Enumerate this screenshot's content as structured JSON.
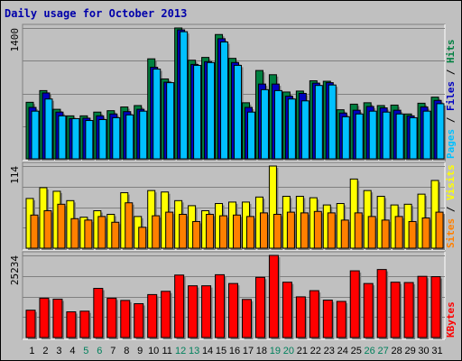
{
  "chart_data": {
    "type": "bar",
    "title": "Daily usage for October 2013",
    "days": [
      "1",
      "2",
      "3",
      "4",
      "5",
      "6",
      "7",
      "8",
      "9",
      "10",
      "11",
      "12",
      "13",
      "14",
      "15",
      "16",
      "17",
      "18",
      "19",
      "20",
      "21",
      "22",
      "23",
      "24",
      "25",
      "26",
      "27",
      "28",
      "29",
      "30",
      "31"
    ],
    "weekend_days": [
      "5",
      "6",
      "12",
      "13",
      "19",
      "20",
      "26",
      "27"
    ],
    "colors": {
      "hits": "#008040",
      "files": "#0000c0",
      "pages": "#00c0ff",
      "visits": "#ffff00",
      "sites": "#ff8000",
      "kbytes": "#ff0000",
      "weekday_label": "#000000",
      "weekend_label": "#00805c",
      "title": "#0000aa",
      "gridline": "#808080"
    },
    "panels": [
      {
        "name": "hits-files-pages",
        "ymax_label": "1400",
        "ymax": 1400,
        "legend": [
          {
            "text": "Pages",
            "color": "#00c0ff"
          },
          {
            "text": " / ",
            "color": "#000000"
          },
          {
            "text": "Files",
            "color": "#0000c0"
          },
          {
            "text": " / ",
            "color": "#000000"
          },
          {
            "text": "Hits",
            "color": "#008040"
          }
        ],
        "series": [
          {
            "name": "Hits",
            "color": "#008040",
            "values": [
              605,
              730,
              530,
              460,
              460,
              500,
              515,
              555,
              570,
              1070,
              855,
              1400,
              1055,
              1085,
              1330,
              1075,
              600,
              945,
              900,
              715,
              725,
              835,
              830,
              525,
              585,
              600,
              570,
              575,
              480,
              595,
              660
            ]
          },
          {
            "name": "Files",
            "color": "#0000c0",
            "values": [
              550,
              705,
              500,
              430,
              435,
              460,
              480,
              505,
              530,
              980,
              820,
              1380,
              1010,
              1040,
              1285,
              1030,
              550,
              800,
              800,
              670,
              700,
              810,
              815,
              490,
              520,
              560,
              545,
              520,
              460,
              555,
              625
            ]
          },
          {
            "name": "Pages",
            "color": "#00c0ff",
            "values": [
              510,
              640,
              460,
              430,
              410,
              420,
              440,
              470,
              510,
              960,
              815,
              1360,
              1000,
              1030,
              1250,
              1000,
              500,
              740,
              730,
              640,
              620,
              785,
              790,
              450,
              480,
              510,
              500,
              480,
              440,
              510,
              590
            ]
          }
        ]
      },
      {
        "name": "visits-sites",
        "ymax_label": "114",
        "ymax": 114,
        "legend": [
          {
            "text": "Sites",
            "color": "#ff8000"
          },
          {
            "text": " / ",
            "color": "#000000"
          },
          {
            "text": "Visits",
            "color": "#ffff00"
          }
        ],
        "series": [
          {
            "name": "Visits",
            "color": "#ffff00",
            "values": [
              69,
              84,
              79,
              66,
              43,
              52,
              47,
              77,
              44,
              80,
              78,
              66,
              59,
              52,
              62,
              64,
              64,
              71,
              114,
              72,
              72,
              70,
              60,
              62,
              96,
              80,
              72,
              60,
              61,
              75,
              94
            ]
          },
          {
            "name": "Sites",
            "color": "#ff8000",
            "values": [
              46,
              52,
              61,
              41,
              39,
              44,
              36,
              63,
              29,
              45,
              50,
              47,
              37,
              47,
              45,
              46,
              44,
              49,
              47,
              50,
              49,
              51,
              49,
              39,
              49,
              44,
              39,
              44,
              37,
              42,
              50
            ]
          }
        ]
      },
      {
        "name": "kbytes",
        "ymax_label": "25234",
        "ymax": 25234,
        "legend": [
          {
            "text": "KBytes",
            "color": "#ff0000"
          }
        ],
        "series": [
          {
            "name": "KBytes",
            "color": "#ff0000",
            "values": [
              8400,
              12100,
              11800,
              7900,
              8100,
              15100,
              12100,
              11400,
              10400,
              13200,
              14200,
              19200,
              15900,
              15900,
              19300,
              16600,
              11700,
              18500,
              25234,
              17000,
              12500,
              14400,
              11500,
              11100,
              20500,
              16600,
              20900,
              17000,
              16900,
              18800,
              18700
            ]
          }
        ]
      }
    ]
  }
}
